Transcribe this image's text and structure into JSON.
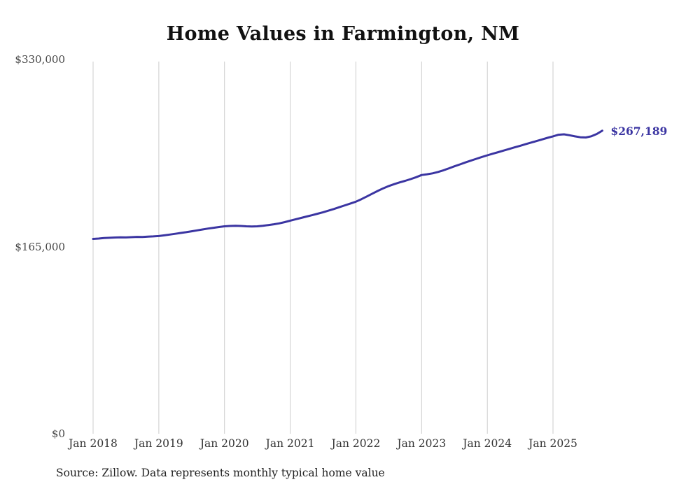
{
  "title": "Home Values in Farmington, NM",
  "source": "Source: Zillow. Data represents monthly typical home value",
  "colors": {
    "line": "#3b35a2",
    "grid": "#cccccc",
    "title_text": "#111111",
    "axis_text": "#444444",
    "source_text": "#222222",
    "background": "#ffffff"
  },
  "y_axis": {
    "ticks": [
      {
        "label": "$330,000",
        "value": 330000
      },
      {
        "label": "$165,000",
        "value": 165000
      },
      {
        "label": "$0",
        "value": 0
      }
    ]
  },
  "x_axis": {
    "tick_labels": [
      "Jan 2018",
      "Jan 2019",
      "Jan 2020",
      "Jan 2021",
      "Jan 2022",
      "Jan 2023",
      "Jan 2024",
      "Jan 2025"
    ]
  },
  "chart_data": {
    "type": "line",
    "title": "Home Values in Farmington, NM",
    "xlabel": "",
    "ylabel": "",
    "ylim": [
      0,
      330000
    ],
    "gridlines": "vertical-yearly",
    "legend": "none",
    "end_label": "$267,189",
    "latest_value": 267189,
    "x": [
      "2018-01",
      "2018-02",
      "2018-03",
      "2018-04",
      "2018-05",
      "2018-06",
      "2018-07",
      "2018-08",
      "2018-09",
      "2018-10",
      "2018-11",
      "2018-12",
      "2019-01",
      "2019-02",
      "2019-03",
      "2019-04",
      "2019-05",
      "2019-06",
      "2019-07",
      "2019-08",
      "2019-09",
      "2019-10",
      "2019-11",
      "2019-12",
      "2020-01",
      "2020-02",
      "2020-03",
      "2020-04",
      "2020-05",
      "2020-06",
      "2020-07",
      "2020-08",
      "2020-09",
      "2020-10",
      "2020-11",
      "2020-12",
      "2021-01",
      "2021-02",
      "2021-03",
      "2021-04",
      "2021-05",
      "2021-06",
      "2021-07",
      "2021-08",
      "2021-09",
      "2021-10",
      "2021-11",
      "2021-12",
      "2022-01",
      "2022-02",
      "2022-03",
      "2022-04",
      "2022-05",
      "2022-06",
      "2022-07",
      "2022-08",
      "2022-09",
      "2022-10",
      "2022-11",
      "2022-12",
      "2023-01",
      "2023-02",
      "2023-03",
      "2023-04",
      "2023-05",
      "2023-06",
      "2023-07",
      "2023-08",
      "2023-09",
      "2023-10",
      "2023-11",
      "2023-12",
      "2024-01",
      "2024-02",
      "2024-03",
      "2024-04",
      "2024-05",
      "2024-06",
      "2024-07",
      "2024-08",
      "2024-09",
      "2024-10",
      "2024-11",
      "2024-12",
      "2025-01",
      "2025-02",
      "2025-03",
      "2025-04",
      "2025-05",
      "2025-06",
      "2025-07",
      "2025-08",
      "2025-09",
      "2025-10"
    ],
    "values": [
      171800,
      172100,
      172500,
      172800,
      173000,
      173200,
      173100,
      173300,
      173600,
      173500,
      173800,
      174000,
      174300,
      174900,
      175600,
      176300,
      177000,
      177700,
      178500,
      179300,
      180100,
      180900,
      181600,
      182300,
      182900,
      183200,
      183400,
      183200,
      182900,
      182700,
      182900,
      183400,
      184000,
      184700,
      185500,
      186600,
      187900,
      189100,
      190300,
      191500,
      192700,
      194000,
      195300,
      196700,
      198200,
      199800,
      201400,
      203000,
      204600,
      206800,
      209200,
      211700,
      214100,
      216400,
      218400,
      220100,
      221600,
      223000,
      224500,
      226200,
      228100,
      228800,
      229600,
      230800,
      232300,
      234000,
      235800,
      237500,
      239200,
      240800,
      242400,
      244000,
      245500,
      246900,
      248300,
      249700,
      251100,
      252500,
      253900,
      255300,
      256700,
      258100,
      259500,
      260900,
      262200,
      263600,
      264000,
      263200,
      262200,
      261400,
      261200,
      262300,
      264300,
      267189
    ]
  }
}
